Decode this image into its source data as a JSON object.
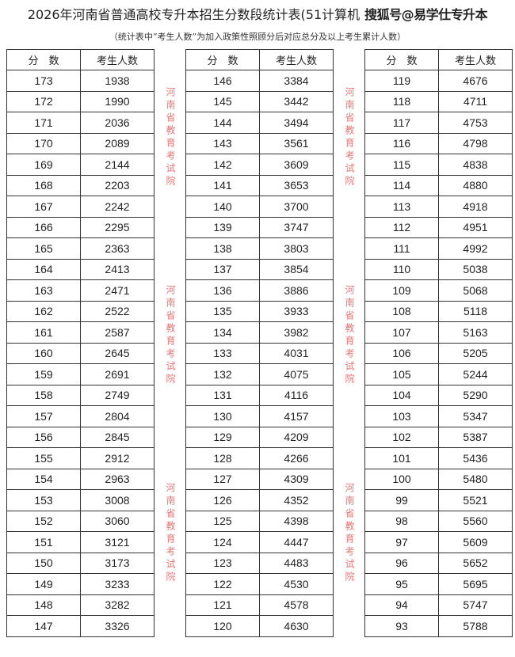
{
  "title": "2026年河南省普通高校专升本招生分数段统计表(51计算机",
  "overlay_watermark": "搜狐号@易学仕专升本",
  "subtitle": "（统计表中“考生人数”为加入政策性照顾分后对应总分及以上考生累计人数）",
  "stamp_watermark": "河南省教育考试院",
  "headers": {
    "score": "分　数",
    "count": "考生人数"
  },
  "tables": [
    {
      "rows": [
        [
          "173",
          "1938"
        ],
        [
          "172",
          "1990"
        ],
        [
          "171",
          "2036"
        ],
        [
          "170",
          "2089"
        ],
        [
          "169",
          "2144"
        ],
        [
          "168",
          "2203"
        ],
        [
          "167",
          "2242"
        ],
        [
          "166",
          "2295"
        ],
        [
          "165",
          "2363"
        ],
        [
          "164",
          "2413"
        ],
        [
          "163",
          "2471"
        ],
        [
          "162",
          "2522"
        ],
        [
          "161",
          "2587"
        ],
        [
          "160",
          "2645"
        ],
        [
          "159",
          "2691"
        ],
        [
          "158",
          "2749"
        ],
        [
          "157",
          "2804"
        ],
        [
          "156",
          "2845"
        ],
        [
          "155",
          "2912"
        ],
        [
          "154",
          "2963"
        ],
        [
          "153",
          "3008"
        ],
        [
          "152",
          "3060"
        ],
        [
          "151",
          "3121"
        ],
        [
          "150",
          "3173"
        ],
        [
          "149",
          "3233"
        ],
        [
          "148",
          "3282"
        ],
        [
          "147",
          "3326"
        ]
      ]
    },
    {
      "rows": [
        [
          "146",
          "3384"
        ],
        [
          "145",
          "3442"
        ],
        [
          "144",
          "3494"
        ],
        [
          "143",
          "3561"
        ],
        [
          "142",
          "3609"
        ],
        [
          "141",
          "3653"
        ],
        [
          "140",
          "3700"
        ],
        [
          "139",
          "3747"
        ],
        [
          "138",
          "3803"
        ],
        [
          "137",
          "3854"
        ],
        [
          "136",
          "3886"
        ],
        [
          "135",
          "3933"
        ],
        [
          "134",
          "3982"
        ],
        [
          "133",
          "4031"
        ],
        [
          "132",
          "4075"
        ],
        [
          "131",
          "4116"
        ],
        [
          "130",
          "4157"
        ],
        [
          "129",
          "4209"
        ],
        [
          "128",
          "4266"
        ],
        [
          "127",
          "4309"
        ],
        [
          "126",
          "4352"
        ],
        [
          "125",
          "4398"
        ],
        [
          "124",
          "4447"
        ],
        [
          "123",
          "4483"
        ],
        [
          "122",
          "4530"
        ],
        [
          "121",
          "4578"
        ],
        [
          "120",
          "4630"
        ]
      ]
    },
    {
      "rows": [
        [
          "119",
          "4676"
        ],
        [
          "118",
          "4711"
        ],
        [
          "117",
          "4753"
        ],
        [
          "116",
          "4798"
        ],
        [
          "115",
          "4838"
        ],
        [
          "114",
          "4880"
        ],
        [
          "113",
          "4918"
        ],
        [
          "112",
          "4951"
        ],
        [
          "111",
          "4992"
        ],
        [
          "110",
          "5038"
        ],
        [
          "109",
          "5068"
        ],
        [
          "108",
          "5118"
        ],
        [
          "107",
          "5163"
        ],
        [
          "106",
          "5205"
        ],
        [
          "105",
          "5244"
        ],
        [
          "104",
          "5290"
        ],
        [
          "103",
          "5347"
        ],
        [
          "102",
          "5387"
        ],
        [
          "101",
          "5436"
        ],
        [
          "100",
          "5480"
        ],
        [
          "99",
          "5521"
        ],
        [
          "98",
          "5560"
        ],
        [
          "97",
          "5609"
        ],
        [
          "96",
          "5652"
        ],
        [
          "95",
          "5695"
        ],
        [
          "94",
          "5747"
        ],
        [
          "93",
          "5788"
        ]
      ]
    }
  ]
}
